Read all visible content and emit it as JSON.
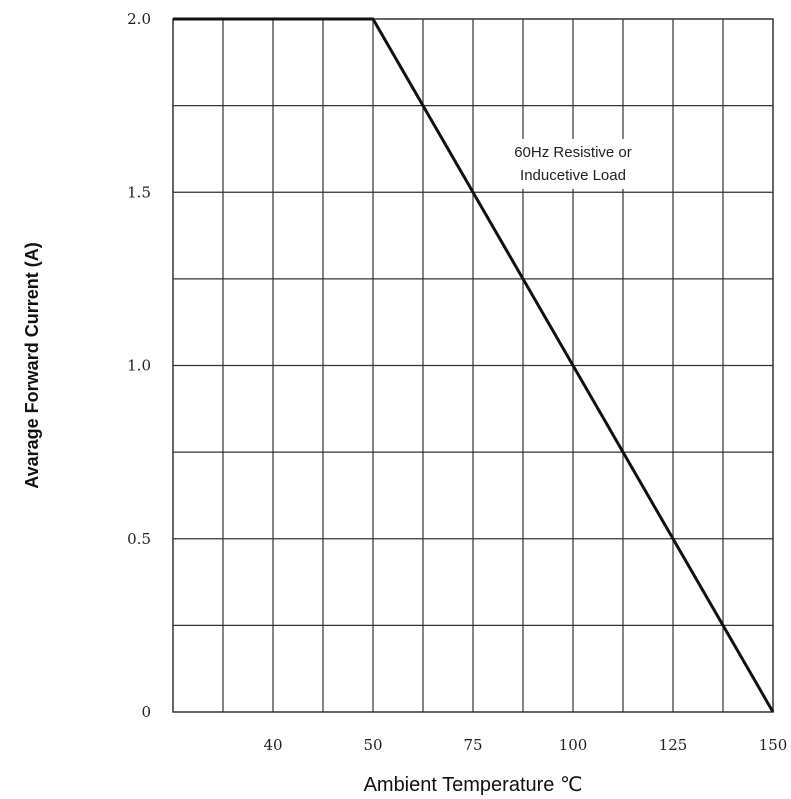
{
  "chart_data": {
    "type": "line",
    "title": "",
    "xlabel": "Ambient Temperature ℃",
    "ylabel": "Avarage Forward Current (A)",
    "x_ticks": [
      {
        "position": 1,
        "label": "40"
      },
      {
        "position": 2,
        "label": "50"
      },
      {
        "position": 3,
        "label": "75"
      },
      {
        "position": 4,
        "label": "100"
      },
      {
        "position": 5,
        "label": "125"
      },
      {
        "position": 6,
        "label": "150"
      }
    ],
    "xlim": [
      0,
      6
    ],
    "x_gridlines": 12,
    "y_ticks": [
      {
        "value": 0,
        "label": "0"
      },
      {
        "value": 0.5,
        "label": "0.5"
      },
      {
        "value": 1.0,
        "label": "1.0"
      },
      {
        "value": 1.5,
        "label": "1.5"
      },
      {
        "value": 2.0,
        "label": "2.0"
      }
    ],
    "ylim": [
      0,
      2.0
    ],
    "y_gridlines": 8,
    "grid": true,
    "series": [
      {
        "x_tick_position": [
          0,
          2,
          6
        ],
        "x": [
          "",
          "50",
          "150"
        ],
        "y": [
          2.0,
          2.0,
          0.0
        ]
      }
    ],
    "annotation": {
      "lines": [
        "60Hz Resistive or",
        "Inducetive Load"
      ],
      "anchor_x_tick_position": 4,
      "anchor_y": 1.55
    },
    "colors": {
      "line": "#111111",
      "grid": "#333333",
      "text": "#222222"
    }
  }
}
